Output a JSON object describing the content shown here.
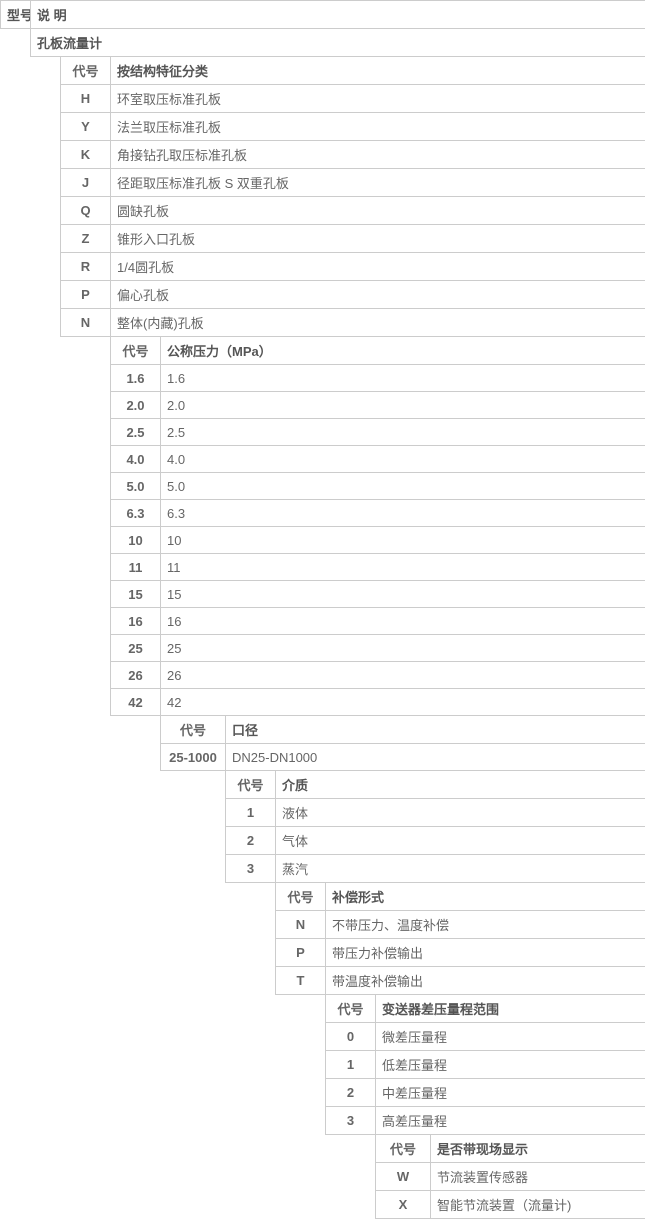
{
  "colors": {
    "border": "#cccccc",
    "text": "#666666",
    "bg": "#ffffff"
  },
  "header": {
    "model": "型号",
    "desc": "说 明",
    "product": "孔板流量计"
  },
  "sec1": {
    "code": "代号",
    "title": "按结构特征分类",
    "rows": [
      {
        "c": "H",
        "d": "环室取压标准孔板"
      },
      {
        "c": "Y",
        "d": "法兰取压标准孔板"
      },
      {
        "c": "K",
        "d": "角接钻孔取压标准孔板"
      },
      {
        "c": "J",
        "d": "径距取压标准孔板 S 双重孔板"
      },
      {
        "c": "Q",
        "d": "圆缺孔板"
      },
      {
        "c": "Z",
        "d": "锥形入口孔板"
      },
      {
        "c": "R",
        "d": "1/4圆孔板"
      },
      {
        "c": "P",
        "d": "偏心孔板"
      },
      {
        "c": "N",
        "d": "整体(内藏)孔板"
      }
    ]
  },
  "sec2": {
    "code": "代号",
    "title": "公称压力（MPa）",
    "rows": [
      {
        "c": "1.6",
        "d": "1.6"
      },
      {
        "c": "2.0",
        "d": "2.0"
      },
      {
        "c": "2.5",
        "d": "2.5"
      },
      {
        "c": "4.0",
        "d": "4.0"
      },
      {
        "c": "5.0",
        "d": "5.0"
      },
      {
        "c": "6.3",
        "d": "6.3"
      },
      {
        "c": "10",
        "d": "10"
      },
      {
        "c": "11",
        "d": "11"
      },
      {
        "c": "15",
        "d": "15"
      },
      {
        "c": "16",
        "d": "16"
      },
      {
        "c": "25",
        "d": "25"
      },
      {
        "c": "26",
        "d": "26"
      },
      {
        "c": "42",
        "d": "42"
      }
    ]
  },
  "sec3": {
    "code": "代号",
    "title": "口径",
    "rows": [
      {
        "c": "25-1000",
        "d": "DN25-DN1000"
      }
    ]
  },
  "sec4": {
    "code": "代号",
    "title": "介质",
    "rows": [
      {
        "c": "1",
        "d": "液体"
      },
      {
        "c": "2",
        "d": "气体"
      },
      {
        "c": "3",
        "d": "蒸汽"
      }
    ]
  },
  "sec5": {
    "code": "代号",
    "title": "补偿形式",
    "rows": [
      {
        "c": "N",
        "d": "不带压力、温度补偿"
      },
      {
        "c": "P",
        "d": "带压力补偿输出"
      },
      {
        "c": "T",
        "d": "带温度补偿输出"
      }
    ]
  },
  "sec6": {
    "code": "代号",
    "title": "变送器差压量程范围",
    "rows": [
      {
        "c": "0",
        "d": "微差压量程"
      },
      {
        "c": "1",
        "d": "低差压量程"
      },
      {
        "c": "2",
        "d": "中差压量程"
      },
      {
        "c": "3",
        "d": "高差压量程"
      }
    ]
  },
  "sec7": {
    "code": "代号",
    "title": "是否带现场显示",
    "rows": [
      {
        "c": "W",
        "d": "节流装置传感器"
      },
      {
        "c": "X",
        "d": "智能节流装置（流量计)"
      }
    ]
  }
}
